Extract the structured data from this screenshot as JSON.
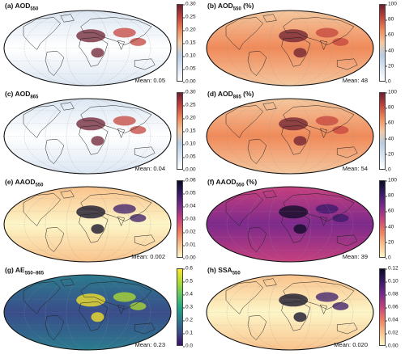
{
  "panels": [
    {
      "id": "a",
      "label": "(a)",
      "title_main": "AOD",
      "title_sub": "550",
      "title_suffix": "",
      "mean_text": "Mean: 0.05",
      "colormap": "blue-orange-red",
      "colorbar_ticks": [
        "0.30",
        "0.25",
        "0.20",
        "0.15",
        "0.10",
        "0.05",
        "0.00"
      ]
    },
    {
      "id": "b",
      "label": "(b)",
      "title_main": "AOD",
      "title_sub": "550",
      "title_suffix": " (%)",
      "mean_text": "Mean: 48",
      "colormap": "blue-orange-red",
      "colorbar_ticks": [
        "100",
        "80",
        "60",
        "40",
        "20",
        "0"
      ]
    },
    {
      "id": "c",
      "label": "(c)",
      "title_main": "AOD",
      "title_sub": "865",
      "title_suffix": "",
      "mean_text": "Mean: 0.04",
      "colormap": "blue-orange-red",
      "colorbar_ticks": [
        "0.30",
        "0.25",
        "0.20",
        "0.15",
        "0.10",
        "0.05",
        "0.00"
      ]
    },
    {
      "id": "d",
      "label": "(d)",
      "title_main": "AOD",
      "title_sub": "865",
      "title_suffix": " (%)",
      "mean_text": "Mean: 54",
      "colormap": "blue-orange-red",
      "colorbar_ticks": [
        "100",
        "80",
        "60",
        "40",
        "20",
        "0"
      ]
    },
    {
      "id": "e",
      "label": "(e)",
      "title_main": "AAOD",
      "title_sub": "550",
      "title_suffix": "",
      "mean_text": "Mean: 0.002",
      "colormap": "magma-reversed",
      "colorbar_ticks": [
        "0.06",
        "0.05",
        "0.04",
        "0.03",
        "0.02",
        "0.01",
        "0.00"
      ]
    },
    {
      "id": "f",
      "label": "(f)",
      "title_main": "AAOD",
      "title_sub": "550",
      "title_suffix": " (%)",
      "mean_text": "Mean: 39",
      "colormap": "magma-reversed",
      "colorbar_ticks": [
        "100",
        "80",
        "60",
        "40",
        "20",
        "0"
      ]
    },
    {
      "id": "g",
      "label": "(g)",
      "title_main": "AE",
      "title_sub": "550–865",
      "title_suffix": "",
      "mean_text": "Mean: 0.23",
      "colormap": "viridis",
      "colorbar_ticks": [
        "0.6",
        "0.5",
        "0.4",
        "0.3",
        "0.2",
        "0.1",
        "0.0"
      ]
    },
    {
      "id": "h",
      "label": "(h)",
      "title_main": "SSA",
      "title_sub": "550",
      "title_suffix": "",
      "mean_text": "Mean: 0.020",
      "colormap": "magma-reversed",
      "colorbar_ticks": [
        "0.12",
        "0.10",
        "0.08",
        "0.06",
        "0.04",
        "0.02",
        "0.00"
      ]
    }
  ],
  "colors": {
    "blue-orange-red": [
      "#ffffff",
      "#dbe6f2",
      "#b7cde6",
      "#f5c9a0",
      "#f08a5a",
      "#c4443c",
      "#6e1f30"
    ],
    "magma-reversed": [
      "#fdf6c8",
      "#f9c18a",
      "#f07c5f",
      "#c8407e",
      "#7c2a8c",
      "#3a1a6a",
      "#0b0924"
    ],
    "viridis": [
      "#3b0f6f",
      "#3a4c8a",
      "#2a7c8e",
      "#22a884",
      "#5ec962",
      "#b0dd2f",
      "#fde725"
    ]
  }
}
